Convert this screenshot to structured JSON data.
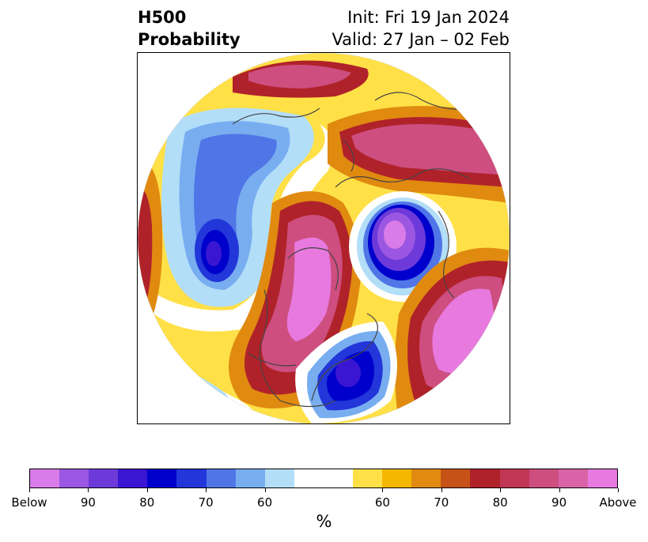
{
  "title": {
    "left_line1": "H500",
    "left_line2": "Probability",
    "right_line1": "Init: Fri 19 Jan 2024",
    "right_line2": "Valid: 27 Jan – 02 Feb"
  },
  "colorbar": {
    "colors": [
      "#d97be8",
      "#9b57e2",
      "#6d3ad9",
      "#3a16d2",
      "#0000cc",
      "#2236d9",
      "#4f75e6",
      "#78aef0",
      "#b3def8",
      "#ffffff",
      "#ffffff",
      "#ffe047",
      "#f5b700",
      "#e08a10",
      "#c65217",
      "#b0222a",
      "#c23655",
      "#cd4e7f",
      "#da63a8",
      "#e779df"
    ],
    "tick_labels": [
      "Below",
      "90",
      "80",
      "70",
      "60",
      "60",
      "70",
      "80",
      "90",
      "Above"
    ],
    "unit": "%"
  }
}
